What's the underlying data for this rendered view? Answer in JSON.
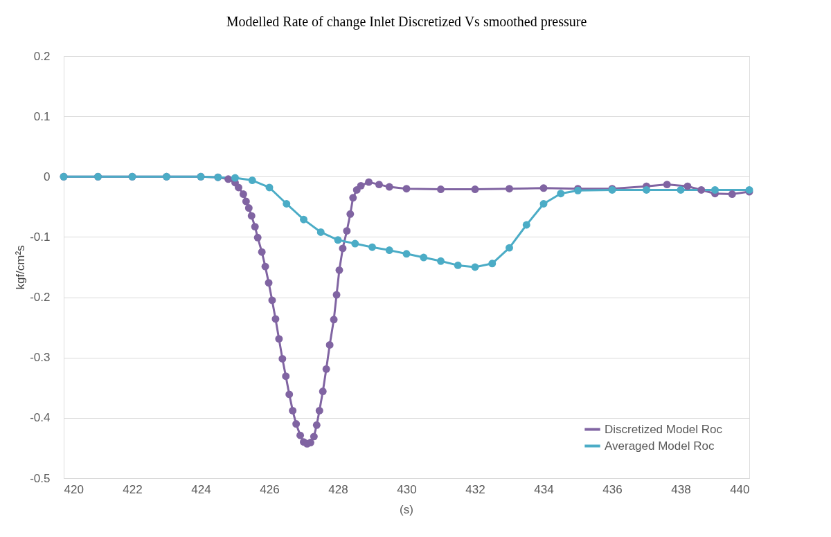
{
  "chart_data": {
    "type": "line",
    "title": "Modelled Rate of change Inlet Discretized Vs smoothed pressure",
    "xlabel": "(s)",
    "ylabel": "kgf/cm²s",
    "xlim": [
      420,
      440
    ],
    "xticks": [
      420,
      422,
      424,
      426,
      428,
      430,
      432,
      434,
      436,
      438,
      440
    ],
    "ylim": [
      -0.5,
      0.2
    ],
    "yticks": [
      -0.5,
      -0.4,
      -0.3,
      -0.2,
      -0.1,
      0,
      0.1,
      0.2
    ],
    "grid": "y",
    "legend": "bottom right",
    "marker": "circle",
    "line_style": "solid",
    "series": [
      {
        "name": "Discretized Model Roc",
        "color": "#8064a2",
        "x": [
          420,
          421,
          422,
          423,
          424,
          424.5,
          424.8,
          425.0,
          425.1,
          425.24,
          425.32,
          425.4,
          425.48,
          425.58,
          425.66,
          425.78,
          425.88,
          425.98,
          426.08,
          426.18,
          426.28,
          426.38,
          426.48,
          426.58,
          426.68,
          426.78,
          426.9,
          427.0,
          427.1,
          427.2,
          427.3,
          427.38,
          427.46,
          427.56,
          427.66,
          427.76,
          427.88,
          427.96,
          428.04,
          428.14,
          428.26,
          428.36,
          428.44,
          428.55,
          428.67,
          428.9,
          429.2,
          429.5,
          430,
          431,
          432,
          433,
          434,
          435,
          436,
          437,
          437.6,
          438.2,
          438.6,
          439,
          439.5,
          440
        ],
        "values": [
          0,
          0,
          0,
          0,
          0,
          -0.001,
          -0.004,
          -0.01,
          -0.018,
          -0.029,
          -0.041,
          -0.052,
          -0.065,
          -0.083,
          -0.101,
          -0.125,
          -0.149,
          -0.176,
          -0.205,
          -0.236,
          -0.269,
          -0.302,
          -0.331,
          -0.361,
          -0.388,
          -0.41,
          -0.429,
          -0.44,
          -0.443,
          -0.441,
          -0.431,
          -0.412,
          -0.388,
          -0.356,
          -0.319,
          -0.279,
          -0.237,
          -0.196,
          -0.155,
          -0.119,
          -0.09,
          -0.062,
          -0.035,
          -0.022,
          -0.015,
          -0.009,
          -0.013,
          -0.017,
          -0.02,
          -0.021,
          -0.021,
          -0.02,
          -0.019,
          -0.02,
          -0.02,
          -0.016,
          -0.013,
          -0.016,
          -0.022,
          -0.028,
          -0.029,
          -0.025
        ]
      },
      {
        "name": "Averaged Model Roc",
        "color": "#4bacc6",
        "x": [
          420,
          421,
          422,
          423,
          424,
          424.5,
          425,
          425.5,
          426,
          426.5,
          427,
          427.5,
          428,
          428.5,
          429,
          429.5,
          430,
          430.5,
          431,
          431.5,
          432,
          432.5,
          433,
          433.5,
          434,
          434.5,
          435,
          436,
          437,
          438,
          439,
          440
        ],
        "values": [
          0,
          0,
          0,
          0,
          0,
          -0.001,
          -0.002,
          -0.006,
          -0.018,
          -0.045,
          -0.071,
          -0.092,
          -0.105,
          -0.111,
          -0.117,
          -0.122,
          -0.128,
          -0.134,
          -0.14,
          -0.147,
          -0.15,
          -0.144,
          -0.118,
          -0.08,
          -0.045,
          -0.028,
          -0.023,
          -0.022,
          -0.022,
          -0.022,
          -0.022,
          -0.022
        ]
      }
    ]
  }
}
